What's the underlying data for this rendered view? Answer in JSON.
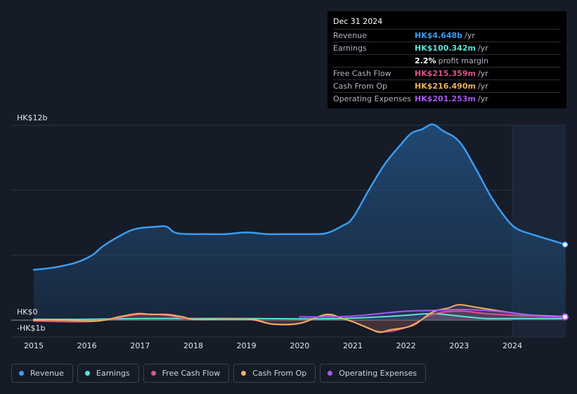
{
  "tooltip": {
    "date": "Dec 31 2024",
    "rows": [
      {
        "label": "Revenue",
        "value": "HK$4.648b",
        "unit": "/yr",
        "color": "#3b9cf0"
      },
      {
        "label": "Earnings",
        "value": "HK$100.342m",
        "unit": "/yr",
        "color": "#5ce1d6"
      },
      {
        "label": "",
        "value": "2.2%",
        "unit": "profit margin",
        "color": "#ffffff"
      },
      {
        "label": "Free Cash Flow",
        "value": "HK$215.359m",
        "unit": "/yr",
        "color": "#d9538a"
      },
      {
        "label": "Cash From Op",
        "value": "HK$216.490m",
        "unit": "/yr",
        "color": "#f0b060"
      },
      {
        "label": "Operating Expenses",
        "value": "HK$201.253m",
        "unit": "/yr",
        "color": "#a855f7"
      }
    ]
  },
  "legend": [
    {
      "label": "Revenue",
      "color": "#3b9cf0"
    },
    {
      "label": "Earnings",
      "color": "#5ce1d6"
    },
    {
      "label": "Free Cash Flow",
      "color": "#d9538a"
    },
    {
      "label": "Cash From Op",
      "color": "#f0b060"
    },
    {
      "label": "Operating Expenses",
      "color": "#a855f7"
    }
  ],
  "chart_data": {
    "type": "area",
    "y_axis_labels": {
      "top": "HK$12b",
      "zero": "HK$0",
      "bottom": "-HK$1b"
    },
    "ylim": [
      -1,
      12
    ],
    "xlim": [
      2014.9,
      2025.0
    ],
    "highlight_start": 2024.0,
    "x_ticks": [
      {
        "value": 2015,
        "label": "2015"
      },
      {
        "value": 2016,
        "label": "2016"
      },
      {
        "value": 2017,
        "label": "2017"
      },
      {
        "value": 2018,
        "label": "2018"
      },
      {
        "value": 2019,
        "label": "2019"
      },
      {
        "value": 2020,
        "label": "2020"
      },
      {
        "value": 2021,
        "label": "2021"
      },
      {
        "value": 2022,
        "label": "2022"
      },
      {
        "value": 2023,
        "label": "2023"
      },
      {
        "value": 2024,
        "label": "2024"
      }
    ],
    "series": [
      {
        "name": "Revenue",
        "color": "#3b9cf0",
        "fill": true,
        "points": [
          [
            2015.0,
            3.1
          ],
          [
            2015.4,
            3.25
          ],
          [
            2015.8,
            3.55
          ],
          [
            2016.1,
            4.0
          ],
          [
            2016.3,
            4.55
          ],
          [
            2016.6,
            5.15
          ],
          [
            2016.9,
            5.6
          ],
          [
            2017.3,
            5.75
          ],
          [
            2017.5,
            5.75
          ],
          [
            2017.7,
            5.35
          ],
          [
            2018.2,
            5.3
          ],
          [
            2018.6,
            5.3
          ],
          [
            2019.0,
            5.4
          ],
          [
            2019.4,
            5.3
          ],
          [
            2019.8,
            5.3
          ],
          [
            2020.2,
            5.3
          ],
          [
            2020.5,
            5.35
          ],
          [
            2020.8,
            5.8
          ],
          [
            2021.0,
            6.3
          ],
          [
            2021.3,
            8.0
          ],
          [
            2021.6,
            9.6
          ],
          [
            2021.9,
            10.8
          ],
          [
            2022.1,
            11.5
          ],
          [
            2022.3,
            11.75
          ],
          [
            2022.5,
            12.05
          ],
          [
            2022.7,
            11.65
          ],
          [
            2023.0,
            11.0
          ],
          [
            2023.3,
            9.4
          ],
          [
            2023.6,
            7.6
          ],
          [
            2023.9,
            6.2
          ],
          [
            2024.1,
            5.6
          ],
          [
            2024.4,
            5.25
          ],
          [
            2024.7,
            4.95
          ],
          [
            2025.0,
            4.65
          ]
        ]
      },
      {
        "name": "Earnings",
        "color": "#5ce1d6",
        "fill": false,
        "points": [
          [
            2015.0,
            0.05
          ],
          [
            2016.0,
            0.05
          ],
          [
            2017.0,
            0.1
          ],
          [
            2018.0,
            0.1
          ],
          [
            2019.0,
            0.1
          ],
          [
            2020.0,
            0.08
          ],
          [
            2020.8,
            0.1
          ],
          [
            2021.5,
            0.2
          ],
          [
            2022.0,
            0.3
          ],
          [
            2022.5,
            0.4
          ],
          [
            2023.0,
            0.25
          ],
          [
            2023.5,
            0.1
          ],
          [
            2024.0,
            0.1
          ],
          [
            2025.0,
            0.1
          ]
        ]
      },
      {
        "name": "Free Cash Flow",
        "color": "#d9538a",
        "fill": false,
        "points": [
          [
            2015.0,
            -0.05
          ],
          [
            2016.0,
            -0.1
          ],
          [
            2016.5,
            0.1
          ],
          [
            2017.0,
            0.35
          ],
          [
            2017.5,
            0.3
          ],
          [
            2018.0,
            0.05
          ],
          [
            2019.0,
            0.05
          ],
          [
            2019.5,
            -0.25
          ],
          [
            2020.0,
            -0.2
          ],
          [
            2020.5,
            0.3
          ],
          [
            2021.0,
            -0.1
          ],
          [
            2021.5,
            -0.7
          ],
          [
            2022.0,
            -0.45
          ],
          [
            2022.5,
            0.35
          ],
          [
            2023.0,
            0.55
          ],
          [
            2023.5,
            0.4
          ],
          [
            2024.0,
            0.3
          ],
          [
            2024.5,
            0.25
          ],
          [
            2025.0,
            0.2
          ]
        ]
      },
      {
        "name": "Cash From Op",
        "color": "#f0b060",
        "fill": false,
        "points": [
          [
            2015.0,
            0.0
          ],
          [
            2015.5,
            0.0
          ],
          [
            2016.2,
            -0.05
          ],
          [
            2016.6,
            0.2
          ],
          [
            2016.95,
            0.4
          ],
          [
            2017.2,
            0.35
          ],
          [
            2017.5,
            0.35
          ],
          [
            2017.8,
            0.2
          ],
          [
            2018.0,
            0.05
          ],
          [
            2018.5,
            0.05
          ],
          [
            2019.0,
            0.05
          ],
          [
            2019.2,
            0.0
          ],
          [
            2019.5,
            -0.25
          ],
          [
            2020.0,
            -0.2
          ],
          [
            2020.5,
            0.35
          ],
          [
            2020.8,
            0.1
          ],
          [
            2021.0,
            -0.1
          ],
          [
            2021.3,
            -0.5
          ],
          [
            2021.5,
            -0.75
          ],
          [
            2021.7,
            -0.6
          ],
          [
            2022.0,
            -0.45
          ],
          [
            2022.2,
            -0.2
          ],
          [
            2022.5,
            0.5
          ],
          [
            2022.8,
            0.75
          ],
          [
            2023.0,
            0.95
          ],
          [
            2023.3,
            0.8
          ],
          [
            2023.6,
            0.65
          ],
          [
            2024.0,
            0.45
          ],
          [
            2024.4,
            0.3
          ],
          [
            2025.0,
            0.22
          ]
        ]
      },
      {
        "name": "Operating Expenses",
        "color": "#a855f7",
        "fill": false,
        "points": [
          [
            2020.0,
            0.2
          ],
          [
            2020.5,
            0.2
          ],
          [
            2021.0,
            0.25
          ],
          [
            2021.5,
            0.4
          ],
          [
            2022.0,
            0.55
          ],
          [
            2022.5,
            0.6
          ],
          [
            2023.0,
            0.65
          ],
          [
            2023.5,
            0.6
          ],
          [
            2024.0,
            0.45
          ],
          [
            2024.5,
            0.25
          ],
          [
            2025.0,
            0.2
          ]
        ]
      }
    ]
  }
}
